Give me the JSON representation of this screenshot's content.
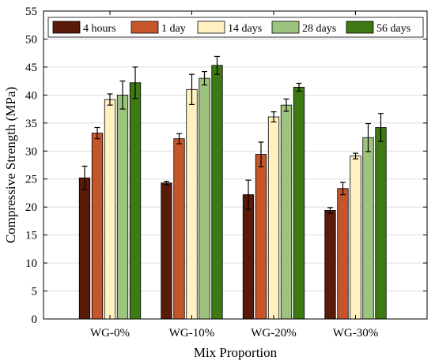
{
  "chart_data": {
    "type": "bar",
    "title": "",
    "xlabel": "Mix Proportion",
    "ylabel": "Compressive Strength (MPa)",
    "ylim": [
      0,
      55
    ],
    "yticks": [
      0,
      5,
      10,
      15,
      20,
      25,
      30,
      35,
      40,
      45,
      50,
      55
    ],
    "grid": true,
    "legend_position": "top",
    "categories": [
      "WG-0%",
      "WG-10%",
      "WG-20%",
      "WG-30%"
    ],
    "series": [
      {
        "name": "4 hours",
        "color": "#5a1a0a",
        "values": [
          25.2,
          24.3,
          22.2,
          19.4
        ],
        "errors": [
          2.1,
          0.3,
          2.6,
          0.5
        ]
      },
      {
        "name": "1 day",
        "color": "#c4562a",
        "values": [
          33.2,
          32.2,
          29.4,
          23.3
        ],
        "errors": [
          1.0,
          0.9,
          2.2,
          1.1
        ]
      },
      {
        "name": "14 days",
        "color": "#fff2c0",
        "values": [
          39.2,
          41.0,
          36.1,
          29.1
        ],
        "errors": [
          1.0,
          2.7,
          0.9,
          0.5
        ]
      },
      {
        "name": "28 days",
        "color": "#9cc47e",
        "values": [
          40.0,
          43.0,
          38.2,
          32.4
        ],
        "errors": [
          2.5,
          1.2,
          1.1,
          2.5
        ]
      },
      {
        "name": "56 days",
        "color": "#3e7a13",
        "values": [
          42.2,
          45.3,
          41.4,
          34.2
        ],
        "errors": [
          2.8,
          1.6,
          0.7,
          2.5
        ]
      }
    ]
  }
}
